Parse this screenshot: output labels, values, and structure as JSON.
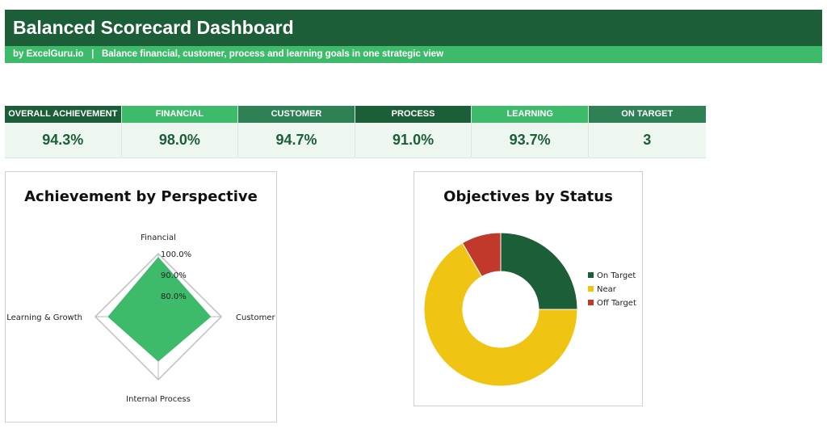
{
  "header": {
    "title": "Balanced Scorecard Dashboard",
    "subtitle": "by ExcelGuru.io   |   Balance financial, customer, process and learning goals in one strategic view"
  },
  "kpis": [
    {
      "label": "OVERALL ACHIEVEMENT",
      "value": "94.3%",
      "color": "#1c5e38"
    },
    {
      "label": "FINANCIAL",
      "value": "98.0%",
      "color": "#3dba6a"
    },
    {
      "label": "CUSTOMER",
      "value": "94.7%",
      "color": "#2e8055"
    },
    {
      "label": "PROCESS",
      "value": "91.0%",
      "color": "#1c5e38"
    },
    {
      "label": "LEARNING",
      "value": "93.7%",
      "color": "#3dba6a"
    },
    {
      "label": "ON TARGET",
      "value": "3",
      "color": "#2e8055"
    }
  ],
  "chart_data": [
    {
      "type": "radar",
      "title": "Achievement by Perspective",
      "categories": [
        "Financial",
        "Customer",
        "Internal Process",
        "Learning & Growth"
      ],
      "values": [
        98.0,
        94.7,
        91.0,
        93.7
      ],
      "range": [
        70,
        100
      ],
      "tick_labels": [
        "80.0%",
        "90.0%",
        "100.0%"
      ],
      "series_color": "#3dba6a"
    },
    {
      "type": "pie",
      "subtype": "donut",
      "title": "Objectives by Status",
      "labels": [
        "On Target",
        "Near",
        "Off Target"
      ],
      "values": [
        3,
        8,
        1
      ],
      "colors": [
        "#1c5e38",
        "#f0c412",
        "#c0392b"
      ],
      "legend": "right"
    }
  ]
}
